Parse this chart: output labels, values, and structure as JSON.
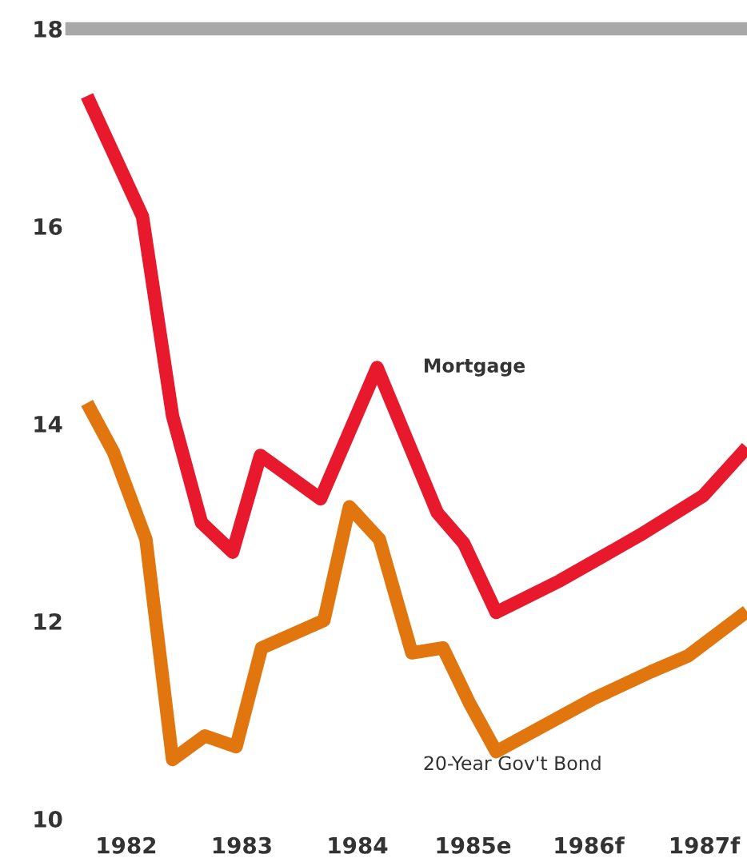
{
  "chart_data": {
    "type": "line",
    "xlim": [
      1981.53,
      1987.37
    ],
    "ylim": [
      10,
      18
    ],
    "xticks": [
      {
        "value": 1982,
        "label": "1982"
      },
      {
        "value": 1983,
        "label": "1983"
      },
      {
        "value": 1984,
        "label": "1984"
      },
      {
        "value": 1985,
        "label": "1985e"
      },
      {
        "value": 1986,
        "label": "1986f"
      },
      {
        "value": 1987,
        "label": "1987f"
      }
    ],
    "yticks": [
      10,
      12,
      14,
      16,
      18
    ],
    "grid": false,
    "legend": false,
    "marker": "none",
    "line_style": "solid",
    "ref_lines": [
      {
        "axis": "y",
        "value": 18,
        "color": "#a8a8a8"
      }
    ],
    "series": [
      {
        "name": "Mortgage",
        "color": "#e8192c",
        "x": [
          1981.66,
          1982.14,
          1982.4,
          1982.65,
          1982.92,
          1983.16,
          1983.68,
          1984.17,
          1984.69,
          1984.92,
          1985.2,
          1985.75,
          1986.44,
          1986.99,
          1987.37
        ],
        "values": [
          17.32,
          16.1,
          14.08,
          13.0,
          12.7,
          13.68,
          13.24,
          14.57,
          13.1,
          12.79,
          12.09,
          12.41,
          12.87,
          13.27,
          13.76
        ]
      },
      {
        "name": "20-Year Gov't Bond",
        "color": "#e2760e",
        "x": [
          1981.66,
          1981.89,
          1982.17,
          1982.4,
          1982.68,
          1982.95,
          1983.17,
          1983.71,
          1983.93,
          1984.19,
          1984.47,
          1984.74,
          1984.97,
          1985.2,
          1986.03,
          1986.54,
          1986.86,
          1987.37
        ],
        "values": [
          14.21,
          13.71,
          12.83,
          10.6,
          10.84,
          10.73,
          11.73,
          12.01,
          13.16,
          12.83,
          11.68,
          11.73,
          11.17,
          10.68,
          11.21,
          11.49,
          11.65,
          12.1
        ]
      }
    ]
  }
}
